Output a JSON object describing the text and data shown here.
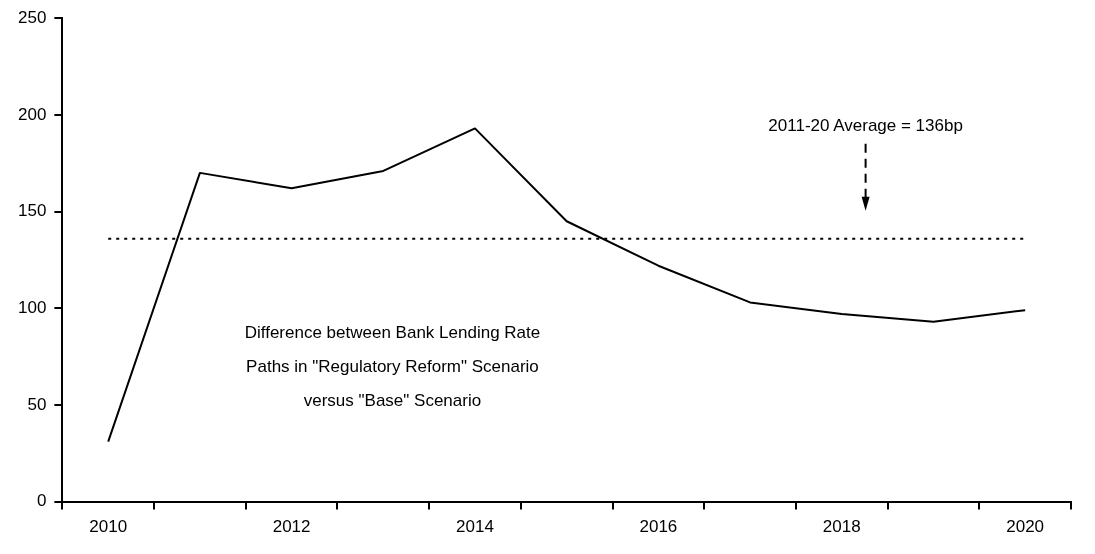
{
  "chart_data": {
    "type": "line",
    "categories": [
      "2010",
      null,
      "2012",
      null,
      "2014",
      null,
      "2016",
      null,
      "2018",
      null,
      "2020"
    ],
    "series": [
      {
        "color": "#000000",
        "values": [
          31,
          170,
          162,
          171,
          193,
          145,
          122,
          103,
          97,
          93,
          99
        ]
      }
    ],
    "ylim": [
      0,
      250
    ],
    "yticks": [
      0,
      50,
      100,
      150,
      200,
      250
    ],
    "grid": false,
    "legend": false,
    "marker": "none",
    "line_style": "solid",
    "ref_lines": [
      {
        "axis": "y",
        "value": 136,
        "label": "2011-20 Average = 136bp",
        "color": "#000000",
        "line_style": "dotted"
      }
    ],
    "annotations": [
      "Difference between Bank Lending Rate Paths in \"Regulatory Reform\" Scenario versus \"Base\" Scenario"
    ]
  }
}
